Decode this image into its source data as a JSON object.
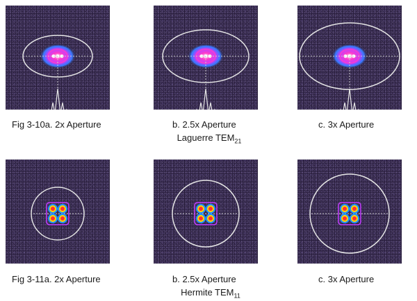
{
  "row1": {
    "captions": [
      "Fig 3-10a. 2x Aperture",
      "b. 2.5x Aperture",
      "c. 3x Aperture"
    ],
    "subtitle_base": "Laguerre TEM",
    "subtitle_sub": "21"
  },
  "row2": {
    "captions": [
      "Fig 3-11a. 2x Aperture",
      "b. 2.5x Aperture",
      "c. 3x Aperture"
    ],
    "subtitle_base": "Hermite TEM",
    "subtitle_sub": "11"
  },
  "colors": {
    "background_noise": "#2a1f3e",
    "aperture_ring": "#e6e6e6",
    "beam_core": "#ff3cc8",
    "beam_mid": "#c23cff",
    "beam_outer": "#3c78ff",
    "hermite_center": "#ff3030",
    "hermite_ring": "#1e90ff"
  }
}
